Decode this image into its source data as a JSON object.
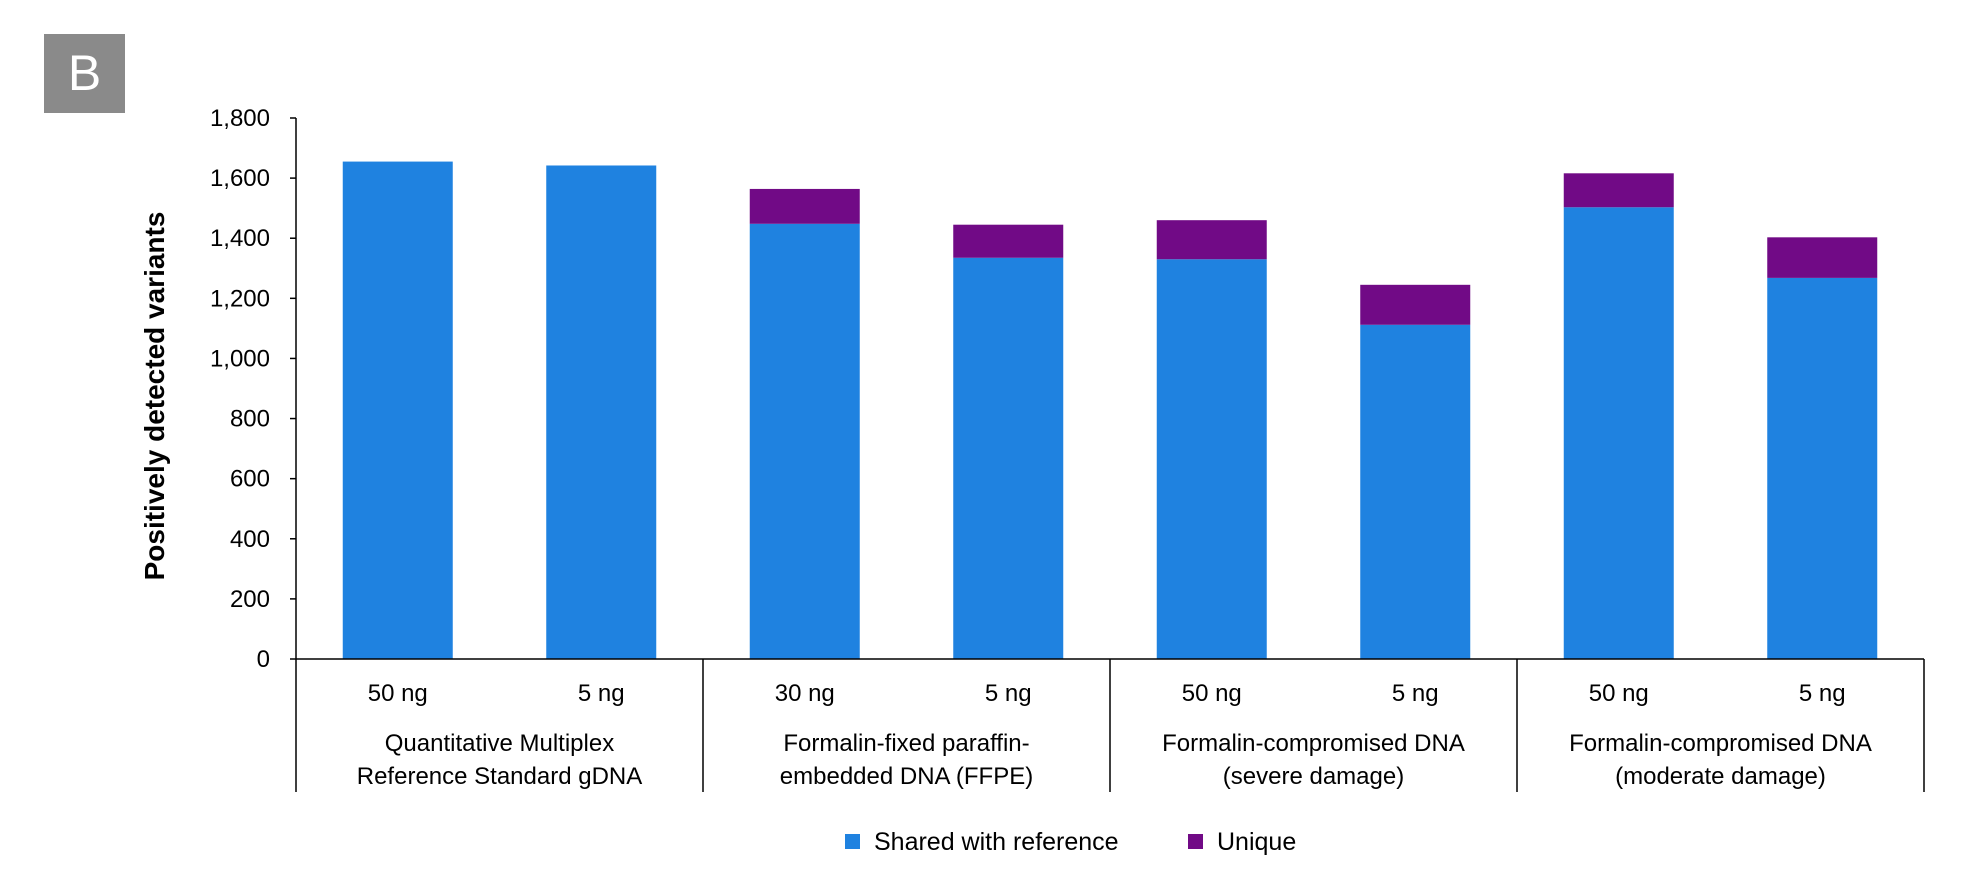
{
  "panel_label": "B",
  "chart_data": {
    "type": "bar",
    "stacked": true,
    "ylabel": "Positively detected variants",
    "ylim": [
      0,
      1800
    ],
    "yticks": [
      0,
      200,
      400,
      600,
      800,
      1000,
      1200,
      1400,
      1600,
      1800
    ],
    "ytick_labels": [
      "0",
      "200",
      "400",
      "600",
      "800",
      "1,000",
      "1,200",
      "1,400",
      "1,600",
      "1,800"
    ],
    "categories": [
      "50 ng",
      "5 ng",
      "30 ng",
      "5 ng",
      "50 ng",
      "5 ng",
      "50 ng",
      "5 ng"
    ],
    "groups": [
      {
        "label_lines": [
          "Quantitative Multiplex",
          "Reference Standard gDNA"
        ],
        "span": [
          0,
          1
        ]
      },
      {
        "label_lines": [
          "Formalin-fixed paraffin-",
          "embedded DNA (FFPE)"
        ],
        "span": [
          2,
          3
        ]
      },
      {
        "label_lines": [
          "Formalin-compromised DNA",
          "(severe damage)"
        ],
        "span": [
          4,
          5
        ]
      },
      {
        "label_lines": [
          "Formalin-compromised DNA",
          "(moderate damage)"
        ],
        "span": [
          6,
          7
        ]
      }
    ],
    "series": [
      {
        "name": "Shared with reference",
        "color": "#1f82e0",
        "values": [
          1655,
          1642,
          1448,
          1335,
          1330,
          1112,
          1503,
          1268
        ]
      },
      {
        "name": "Unique",
        "color": "#710a86",
        "values": [
          0,
          0,
          116,
          110,
          130,
          133,
          113,
          135
        ]
      }
    ],
    "grid": false,
    "legend_position": "bottom-center"
  }
}
